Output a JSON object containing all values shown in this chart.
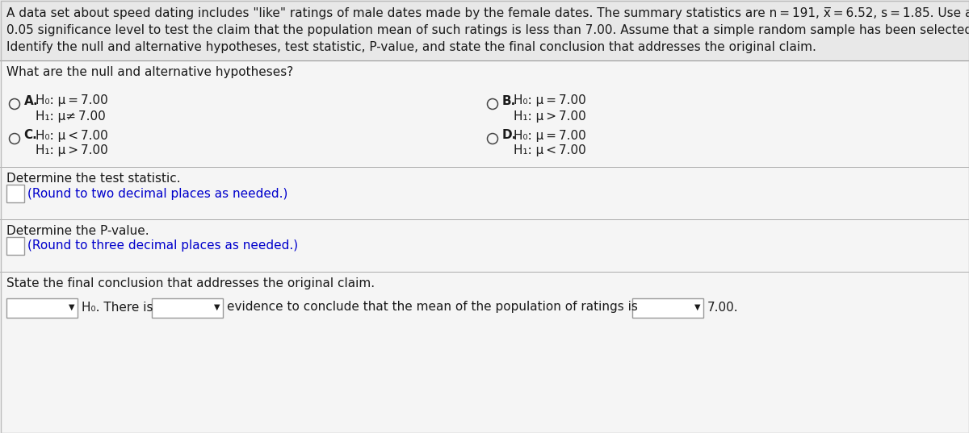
{
  "bg_color": "#f2f2f2",
  "white": "#ffffff",
  "text_color": "#1a1a1a",
  "blue_color": "#0000cc",
  "line_color": "#aaaaaa",
  "box_border": "#999999",
  "header_lines": [
    "A data set about speed dating includes \"like\" ratings of male dates made by the female dates. The summary statistics are n = 191, x̅ = 6.52, s = 1.85. Use a",
    "0.05 significance level to test the claim that the population mean of such ratings is less than 7.00. Assume that a simple random sample has been selected.",
    "Identify the null and alternative hypotheses, test statistic, P-value, and state the final conclusion that addresses the original claim."
  ],
  "question": "What are the null and alternative hypotheses?",
  "opt_A_1": "H₀: μ = 7.00",
  "opt_A_2": "H₁: μ≠ 7.00",
  "opt_B_1": "H₀: μ = 7.00",
  "opt_B_2": "H₁: μ > 7.00",
  "opt_C_1": "H₀: μ < 7.00",
  "opt_C_2": "H₁: μ > 7.00",
  "opt_D_1": "H₀: μ = 7.00",
  "opt_D_2": "H₁: μ < 7.00",
  "sec2_title": "Determine the test statistic.",
  "sec2_sub": "(Round to two decimal places as needed.)",
  "sec3_title": "Determine the P-value.",
  "sec3_sub": "(Round to three decimal places as needed.)",
  "sec4_title": "State the final conclusion that addresses the original claim.",
  "final_mid": "evidence to conclude that the mean of the population of ratings is",
  "final_end": "7.00.",
  "h0_label": "H₀. There is"
}
